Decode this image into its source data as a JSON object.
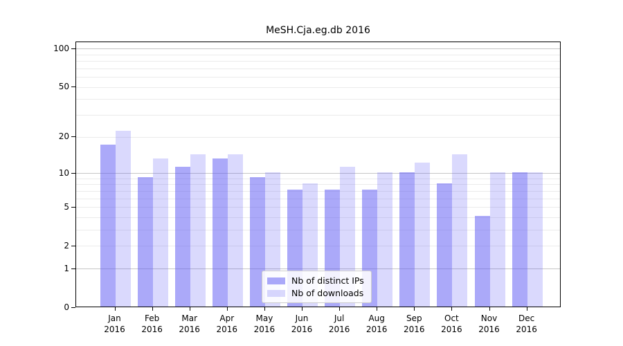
{
  "chart_data": {
    "type": "bar",
    "title": "MeSH.Cja.eg.db 2016",
    "categories": [
      "Jan",
      "Feb",
      "Mar",
      "Apr",
      "May",
      "Jun",
      "Jul",
      "Aug",
      "Sep",
      "Oct",
      "Nov",
      "Dec"
    ],
    "x_tick_second_line": "2016",
    "series": [
      {
        "name": "Nb of distinct IPs",
        "values": [
          17,
          9,
          11,
          13,
          9,
          7,
          7,
          7,
          10,
          8,
          4,
          10
        ],
        "color": "rgba(88,84,244,0.50)"
      },
      {
        "name": "Nb of downloads",
        "values": [
          22,
          13,
          14,
          14,
          10,
          8,
          11,
          10,
          12,
          14,
          10,
          10
        ],
        "color": "rgba(88,84,244,0.22)"
      }
    ],
    "scale": "log1p",
    "ylim": [
      0,
      100
    ],
    "y_ticks": [
      100,
      50,
      20,
      10,
      5,
      2,
      1,
      0
    ],
    "major_gridlines": [
      1,
      10,
      100
    ],
    "minor_gridlines": [
      2,
      3,
      4,
      5,
      6,
      7,
      8,
      9,
      20,
      30,
      40,
      50,
      60,
      70,
      80,
      90
    ],
    "grid": "on",
    "legend_position": "bottom-center",
    "colors": {
      "bar_distinct_ips": "#aca9f9",
      "bar_downloads": "#dcdcfa",
      "major_grid": "#c6c6c6",
      "minor_grid": "#ebebeb",
      "axis": "#000000",
      "background": "#ffffff"
    }
  }
}
